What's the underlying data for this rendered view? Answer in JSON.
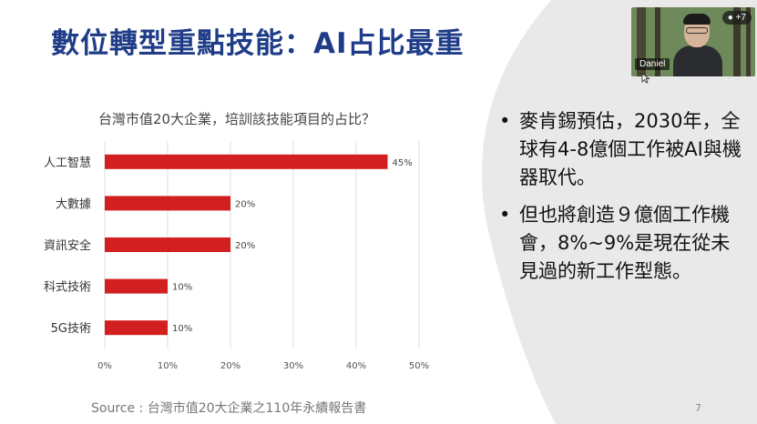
{
  "slide": {
    "title": "數位轉型重點技能：AI占比最重",
    "bullets": [
      {
        "marker": "•",
        "text": "麥肯錫預估，2030年，全球有4-8億個工作被AI與機器取代。"
      },
      {
        "marker": "•",
        "text": "但也將創造９億個工作機會，8%~9%是現在從未見過的新工作型態。"
      }
    ],
    "source": "Source : 台灣市值20大企業之110年永續報告書",
    "page_number": "7"
  },
  "chart_data": {
    "type": "bar",
    "orientation": "horizontal",
    "title": "台灣市值20大企業，培訓該技能項目的占比？",
    "categories": [
      "人工智慧",
      "大數據",
      "資訊安全",
      "科式技術",
      "5G技術"
    ],
    "values": [
      45,
      20,
      20,
      10,
      10
    ],
    "data_labels": [
      "45%",
      "20%",
      "20%",
      "10%",
      "10%"
    ],
    "xlim": [
      0,
      50
    ],
    "x_ticks": [
      0,
      10,
      20,
      30,
      40,
      50
    ],
    "x_tick_labels": [
      "0%",
      "10%",
      "20%",
      "30%",
      "40%",
      "50%"
    ],
    "grid": true,
    "bar_color": "#d21f1f"
  },
  "video": {
    "participant_name": "Daniel",
    "participant_count": "+7",
    "icons": [
      "person-icon",
      "cursor-icon"
    ]
  },
  "colors": {
    "title": "#1f3c88",
    "right_panel": "#e9e9e9"
  }
}
